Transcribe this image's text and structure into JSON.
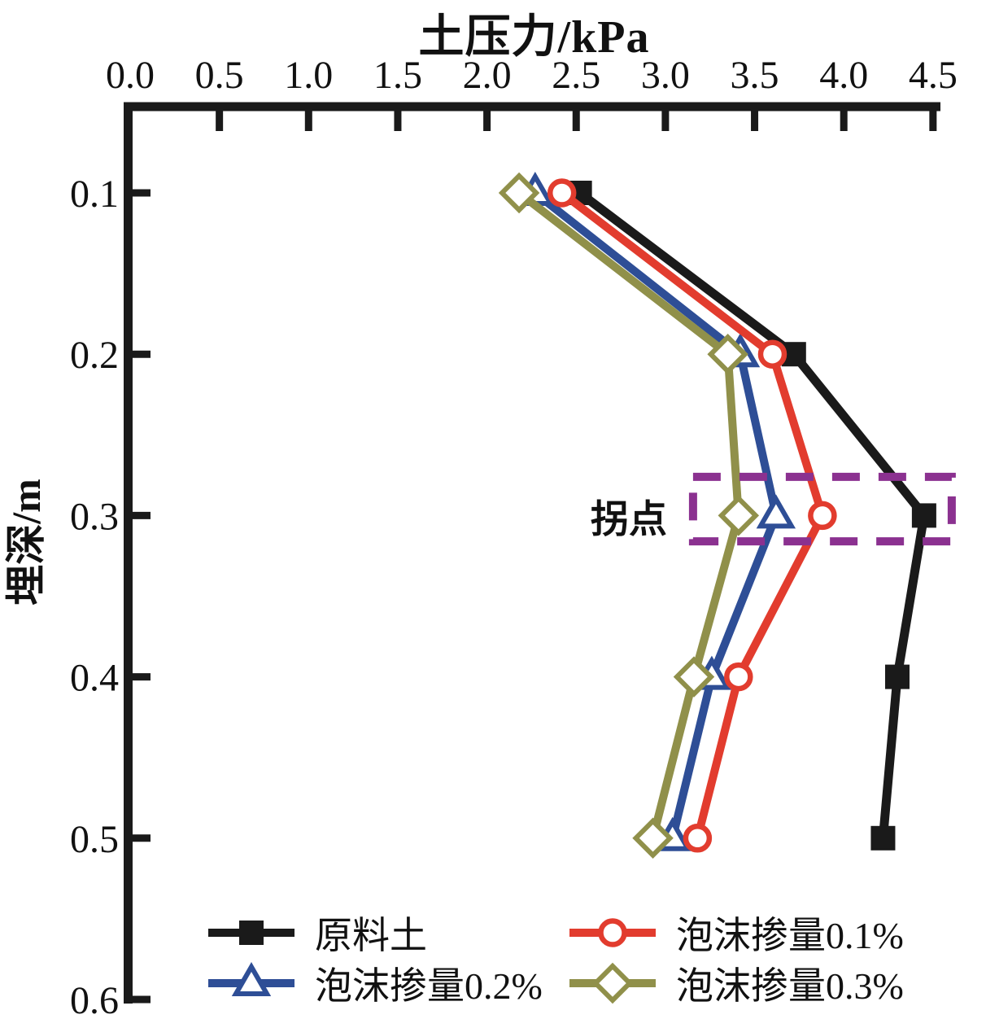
{
  "chart_data": {
    "type": "line",
    "title": "土压力/kPa",
    "xlabel": "土压力/kPa",
    "ylabel": "埋深/m",
    "x_axis": {
      "min": 0.0,
      "max": 4.5,
      "tick_values": [
        0.0,
        0.5,
        1.0,
        1.5,
        2.0,
        2.5,
        3.0,
        3.5,
        4.0,
        4.5
      ],
      "tick_labels": [
        "0.0",
        "0.5",
        "1.0",
        "1.5",
        "2.0",
        "2.5",
        "3.0",
        "3.5",
        "4.0",
        "4.5"
      ],
      "position": "top"
    },
    "y_axis": {
      "min": 0.1,
      "max": 0.6,
      "tick_values": [
        0.1,
        0.2,
        0.3,
        0.4,
        0.5,
        0.6
      ],
      "tick_labels": [
        "0.1",
        "0.2",
        "0.3",
        "0.4",
        "0.5",
        "0.6"
      ],
      "inverted": true,
      "position": "left"
    },
    "grid": false,
    "series": [
      {
        "id": "raw-soil",
        "name": "原料土",
        "color": "#1a1a1a",
        "marker": "square",
        "depths": [
          0.1,
          0.2,
          0.3,
          0.4,
          0.5
        ],
        "pressures": [
          2.52,
          3.72,
          4.45,
          4.3,
          4.22
        ]
      },
      {
        "id": "foam-0-2",
        "name": "泡沫掺量0.2%",
        "color": "#2e4e96",
        "marker": "triangle",
        "depths": [
          0.1,
          0.2,
          0.3,
          0.4,
          0.5
        ],
        "pressures": [
          2.27,
          3.42,
          3.62,
          3.26,
          3.04
        ]
      },
      {
        "id": "foam-0-1",
        "name": "泡沫掺量0.1%",
        "color": "#e23c2e",
        "marker": "circle",
        "depths": [
          0.1,
          0.2,
          0.3,
          0.4,
          0.5
        ],
        "pressures": [
          2.42,
          3.6,
          3.88,
          3.41,
          3.18
        ]
      },
      {
        "id": "foam-0-3",
        "name": "泡沫掺量0.3%",
        "color": "#90904a",
        "marker": "diamond",
        "depths": [
          0.1,
          0.2,
          0.3,
          0.4,
          0.5
        ],
        "pressures": [
          2.18,
          3.35,
          3.41,
          3.16,
          2.93
        ]
      }
    ],
    "annotation": {
      "label": "拐点",
      "box_color": "#8b3190",
      "box_pressure_range": [
        3.155,
        4.605
      ],
      "box_depth_range": [
        0.276,
        0.316
      ]
    },
    "legend_order": [
      0,
      2,
      1,
      3
    ],
    "legend_position": "bottom"
  }
}
